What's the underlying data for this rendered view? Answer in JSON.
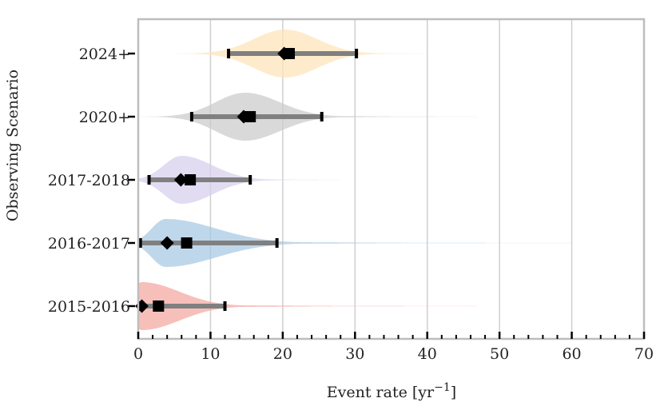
{
  "chart_data": {
    "type": "violin",
    "title": "",
    "xlabel_main": "Event rate [yr",
    "xlabel_sup": "−1",
    "xlabel_end": "]",
    "ylabel": "Observing Scenario",
    "xlim": [
      0,
      70
    ],
    "xticks": [
      0,
      10,
      20,
      30,
      40,
      50,
      60,
      70
    ],
    "xtick_labels": [
      "0",
      "10",
      "20",
      "30",
      "40",
      "50",
      "60",
      "70"
    ],
    "grid": "vertical",
    "categories": [
      "2015-2016",
      "2016-2017",
      "2017-2018",
      "2020+",
      "2024+"
    ],
    "series": [
      {
        "category": "2015-2016",
        "color": "#f4a9a3",
        "lower": 0.3,
        "upper": 12,
        "median": 0.5,
        "mean": 2.8,
        "mode": 0.5,
        "tail_max": 47
      },
      {
        "category": "2016-2017",
        "color": "#a9c9e3",
        "lower": 0.3,
        "upper": 19.2,
        "median": 4.0,
        "mean": 6.7,
        "mode": 3.8,
        "tail_max": 60
      },
      {
        "category": "2017-2018",
        "color": "#d8d0ee",
        "lower": 1.5,
        "upper": 15.5,
        "median": 5.9,
        "mean": 7.2,
        "mode": 6.0,
        "tail_max": 28
      },
      {
        "category": "2020+",
        "color": "#cccccc",
        "lower": 7.4,
        "upper": 25.4,
        "median": 14.6,
        "mean": 15.5,
        "mode": 14.8,
        "tail_max": 47
      },
      {
        "category": "2024+",
        "color": "#fde4bb",
        "lower": 12.5,
        "upper": 30.2,
        "median": 20.2,
        "mean": 20.9,
        "mode": 20.3,
        "tail_max": 40
      }
    ]
  }
}
